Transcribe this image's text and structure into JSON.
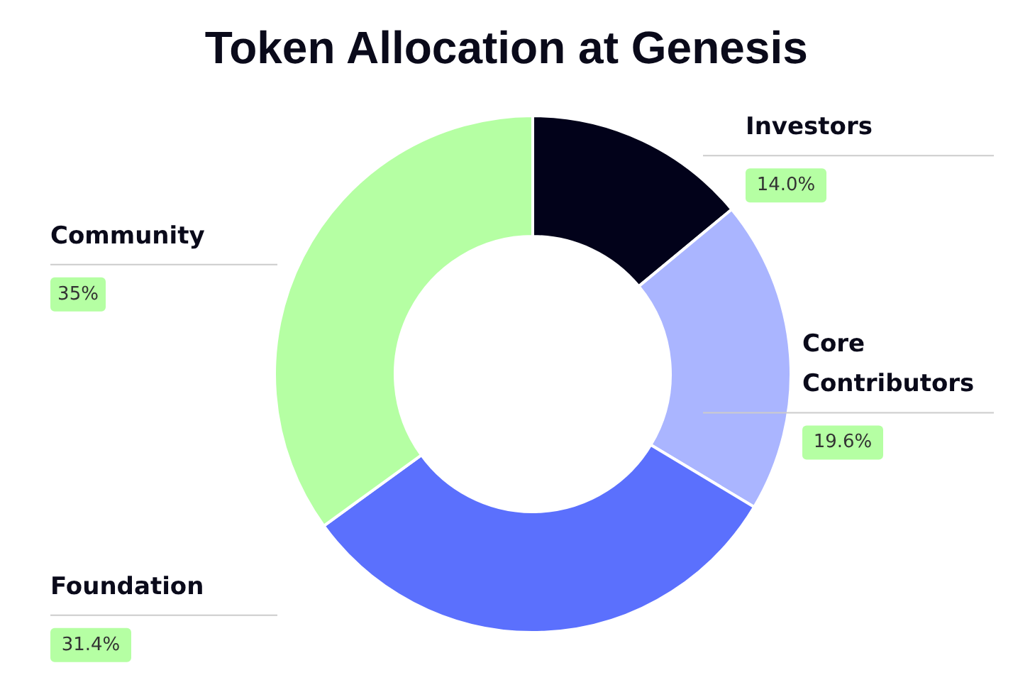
{
  "chart_data": {
    "type": "donut",
    "title": "Token Allocation at Genesis",
    "categories": [
      "Investors",
      "Core Contributors",
      "Foundation",
      "Community"
    ],
    "values": [
      14.0,
      19.6,
      31.4,
      35
    ],
    "colors": [
      "#02021a",
      "#aab5ff",
      "#5b70fd",
      "#b5ffa3"
    ],
    "value_labels": [
      "14.0%",
      "19.6%",
      "31.4%",
      "35%"
    ]
  }
}
